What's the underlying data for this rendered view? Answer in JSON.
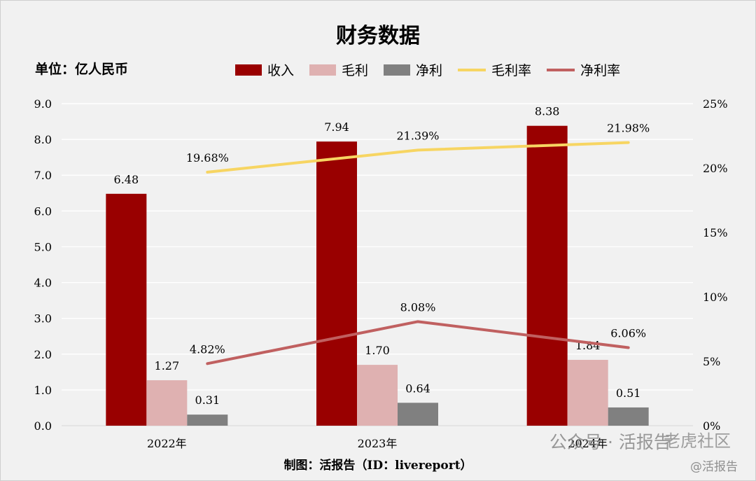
{
  "title": "财务数据",
  "unit_label": "单位：亿人民币",
  "credit": "制图：活报告（ID：livereport）",
  "watermarks": {
    "wechat": "公众号 · 活报告",
    "community": "老虎社区",
    "handle": "@活报告"
  },
  "colors": {
    "revenue": "#990000",
    "gross": "#dfb1b1",
    "net": "#808080",
    "gross_margin": "#f7d562",
    "net_margin": "#c06060",
    "grid": "#ffffff"
  },
  "legend": [
    {
      "label": "收入",
      "kind": "bar",
      "color": "#990000"
    },
    {
      "label": "毛利",
      "kind": "bar",
      "color": "#dfb1b1"
    },
    {
      "label": "净利",
      "kind": "bar",
      "color": "#808080"
    },
    {
      "label": "毛利率",
      "kind": "line",
      "color": "#f7d562"
    },
    {
      "label": "净利率",
      "kind": "line",
      "color": "#c06060"
    }
  ],
  "chart_data": {
    "type": "bar",
    "categories": [
      "2022年",
      "2023年",
      "2024年"
    ],
    "ylim": [
      0,
      9
    ],
    "y_ticks": [
      "0.0",
      "1.0",
      "2.0",
      "3.0",
      "4.0",
      "5.0",
      "6.0",
      "7.0",
      "8.0",
      "9.0"
    ],
    "y2lim": [
      0,
      25
    ],
    "y2_ticks": [
      "0%",
      "5%",
      "10%",
      "15%",
      "20%",
      "25%"
    ],
    "grid": true,
    "legend_position": "top",
    "series": [
      {
        "name": "收入",
        "type": "bar",
        "axis": "left",
        "values": [
          6.48,
          7.94,
          8.38
        ],
        "labels": [
          "6.48",
          "7.94",
          "8.38"
        ]
      },
      {
        "name": "毛利",
        "type": "bar",
        "axis": "left",
        "values": [
          1.27,
          1.7,
          1.84
        ],
        "labels": [
          "1.27",
          "1.70",
          "1.84"
        ]
      },
      {
        "name": "净利",
        "type": "bar",
        "axis": "left",
        "values": [
          0.31,
          0.64,
          0.51
        ],
        "labels": [
          "0.31",
          "0.64",
          "0.51"
        ]
      },
      {
        "name": "毛利率",
        "type": "line",
        "axis": "right",
        "values": [
          19.68,
          21.39,
          21.98
        ],
        "labels": [
          "19.68%",
          "21.39%",
          "21.98%"
        ]
      },
      {
        "name": "净利率",
        "type": "line",
        "axis": "right",
        "values": [
          4.82,
          8.08,
          6.06
        ],
        "labels": [
          "4.82%",
          "8.08%",
          "6.06%"
        ]
      }
    ]
  }
}
